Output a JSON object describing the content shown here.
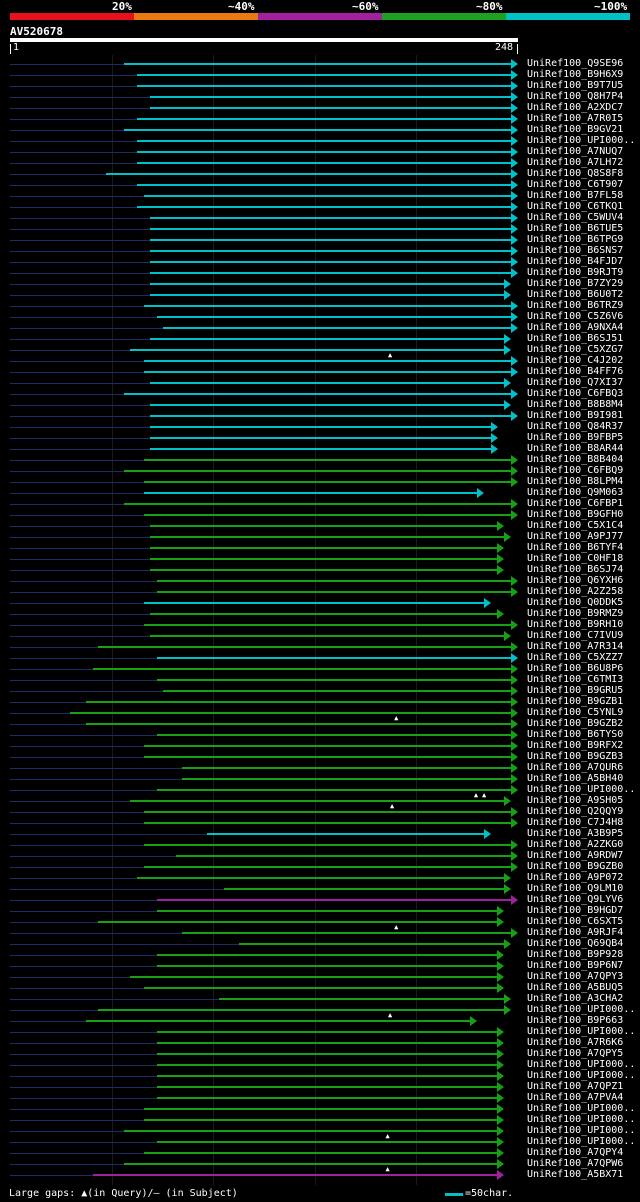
{
  "scale": {
    "labels": [
      "20%",
      "~40%",
      "~60%",
      "~80%",
      "~100%"
    ],
    "colors": [
      "#e8101c",
      "#e87a10",
      "#a020a0",
      "#20a020",
      "#00c0c8"
    ]
  },
  "query": {
    "id": "AV520678",
    "start": "1",
    "end": "248"
  },
  "legend": {
    "gaps_text": "Large gaps: ▲(in Query)/— (in Subject)",
    "scale_text": "=50char."
  },
  "hits": [
    {
      "label": "UniRef100_Q9SE96",
      "start": 0.224,
      "end": 1.0,
      "color": "cyan",
      "gaps": []
    },
    {
      "label": "UniRef100_B9H6X9",
      "start": 0.25,
      "end": 1.0,
      "color": "cyan",
      "gaps": []
    },
    {
      "label": "UniRef100_B9T7U5",
      "start": 0.25,
      "end": 1.0,
      "color": "cyan",
      "gaps": []
    },
    {
      "label": "UniRef100_Q8H7P4",
      "start": 0.276,
      "end": 1.0,
      "color": "cyan",
      "gaps": []
    },
    {
      "label": "UniRef100_A2XDC7",
      "start": 0.276,
      "end": 1.0,
      "color": "cyan",
      "gaps": []
    },
    {
      "label": "UniRef100_A7R0I5",
      "start": 0.25,
      "end": 1.0,
      "color": "cyan",
      "gaps": []
    },
    {
      "label": "UniRef100_B9GV21",
      "start": 0.224,
      "end": 1.0,
      "color": "cyan",
      "gaps": []
    },
    {
      "label": "UniRef100_UPI000..",
      "start": 0.25,
      "end": 1.0,
      "color": "cyan",
      "gaps": []
    },
    {
      "label": "UniRef100_A7NUQ7",
      "start": 0.25,
      "end": 1.0,
      "color": "cyan",
      "gaps": []
    },
    {
      "label": "UniRef100_A7LH72",
      "start": 0.25,
      "end": 1.0,
      "color": "cyan",
      "gaps": []
    },
    {
      "label": "UniRef100_Q8S8F8",
      "start": 0.189,
      "end": 1.0,
      "color": "cyan",
      "gaps": []
    },
    {
      "label": "UniRef100_C6T907",
      "start": 0.25,
      "end": 1.0,
      "color": "cyan",
      "gaps": []
    },
    {
      "label": "UniRef100_B7FL58",
      "start": 0.264,
      "end": 1.0,
      "color": "cyan",
      "gaps": []
    },
    {
      "label": "UniRef100_C6TKQ1",
      "start": 0.25,
      "end": 1.0,
      "color": "cyan",
      "gaps": []
    },
    {
      "label": "UniRef100_C5WUV4",
      "start": 0.276,
      "end": 1.0,
      "color": "cyan",
      "gaps": []
    },
    {
      "label": "UniRef100_B6TUE5",
      "start": 0.276,
      "end": 1.0,
      "color": "cyan",
      "gaps": []
    },
    {
      "label": "UniRef100_B6TPG9",
      "start": 0.276,
      "end": 1.0,
      "color": "cyan",
      "gaps": []
    },
    {
      "label": "UniRef100_B6SNS7",
      "start": 0.276,
      "end": 1.0,
      "color": "cyan",
      "gaps": []
    },
    {
      "label": "UniRef100_B4FJD7",
      "start": 0.276,
      "end": 1.0,
      "color": "cyan",
      "gaps": []
    },
    {
      "label": "UniRef100_B9RJT9",
      "start": 0.276,
      "end": 1.0,
      "color": "cyan",
      "gaps": []
    },
    {
      "label": "UniRef100_B7ZY29",
      "start": 0.276,
      "end": 0.986,
      "color": "cyan",
      "gaps": []
    },
    {
      "label": "UniRef100_B6U0T2",
      "start": 0.276,
      "end": 0.986,
      "color": "cyan",
      "gaps": []
    },
    {
      "label": "UniRef100_B6TRZ9",
      "start": 0.264,
      "end": 1.0,
      "color": "cyan",
      "gaps": []
    },
    {
      "label": "UniRef100_C5Z6V6",
      "start": 0.289,
      "end": 1.0,
      "color": "cyan",
      "gaps": []
    },
    {
      "label": "UniRef100_A9NXA4",
      "start": 0.301,
      "end": 1.0,
      "color": "cyan",
      "gaps": []
    },
    {
      "label": "UniRef100_B6SJ51",
      "start": 0.276,
      "end": 0.986,
      "color": "cyan",
      "gaps": []
    },
    {
      "label": "UniRef100_C5XZG7",
      "start": 0.236,
      "end": 0.986,
      "color": "cyan",
      "gaps": [
        0.748
      ]
    },
    {
      "label": "UniRef100_C4J202",
      "start": 0.264,
      "end": 1.0,
      "color": "cyan",
      "gaps": []
    },
    {
      "label": "UniRef100_B4FF76",
      "start": 0.264,
      "end": 1.0,
      "color": "cyan",
      "gaps": []
    },
    {
      "label": "UniRef100_Q7XI37",
      "start": 0.276,
      "end": 0.986,
      "color": "cyan",
      "gaps": []
    },
    {
      "label": "UniRef100_C6FBQ3",
      "start": 0.224,
      "end": 1.0,
      "color": "cyan",
      "gaps": []
    },
    {
      "label": "UniRef100_B8B8M4",
      "start": 0.276,
      "end": 0.986,
      "color": "cyan",
      "gaps": []
    },
    {
      "label": "UniRef100_B9I981",
      "start": 0.276,
      "end": 1.0,
      "color": "cyan",
      "gaps": []
    },
    {
      "label": "UniRef100_Q84R37",
      "start": 0.276,
      "end": 0.96,
      "color": "cyan",
      "gaps": []
    },
    {
      "label": "UniRef100_B9FBP5",
      "start": 0.276,
      "end": 0.96,
      "color": "cyan",
      "gaps": []
    },
    {
      "label": "UniRef100_B8AR44",
      "start": 0.276,
      "end": 0.96,
      "color": "cyan",
      "gaps": []
    },
    {
      "label": "UniRef100_B8B404",
      "start": 0.264,
      "end": 1.0,
      "color": "green",
      "gaps": []
    },
    {
      "label": "UniRef100_C6FBQ9",
      "start": 0.224,
      "end": 1.0,
      "color": "green",
      "gaps": []
    },
    {
      "label": "UniRef100_B8LPM4",
      "start": 0.264,
      "end": 1.0,
      "color": "green",
      "gaps": []
    },
    {
      "label": "UniRef100_Q9M063",
      "start": 0.264,
      "end": 0.934,
      "color": "cyan",
      "gaps": []
    },
    {
      "label": "UniRef100_C6FBP1",
      "start": 0.224,
      "end": 1.0,
      "color": "green",
      "gaps": []
    },
    {
      "label": "UniRef100_B9GFH0",
      "start": 0.264,
      "end": 1.0,
      "color": "green",
      "gaps": []
    },
    {
      "label": "UniRef100_C5X1C4",
      "start": 0.276,
      "end": 0.973,
      "color": "green",
      "gaps": []
    },
    {
      "label": "UniRef100_A9PJ77",
      "start": 0.276,
      "end": 0.986,
      "color": "green",
      "gaps": []
    },
    {
      "label": "UniRef100_B6TYF4",
      "start": 0.276,
      "end": 0.973,
      "color": "green",
      "gaps": []
    },
    {
      "label": "UniRef100_C0HF18",
      "start": 0.276,
      "end": 0.973,
      "color": "green",
      "gaps": []
    },
    {
      "label": "UniRef100_B6SJ74",
      "start": 0.276,
      "end": 0.973,
      "color": "green",
      "gaps": []
    },
    {
      "label": "UniRef100_Q6YXH6",
      "start": 0.289,
      "end": 1.0,
      "color": "green",
      "gaps": []
    },
    {
      "label": "UniRef100_A2Z258",
      "start": 0.289,
      "end": 1.0,
      "color": "green",
      "gaps": []
    },
    {
      "label": "UniRef100_Q0DDK5",
      "start": 0.264,
      "end": 0.947,
      "color": "cyan",
      "gaps": []
    },
    {
      "label": "UniRef100_B9RMZ9",
      "start": 0.276,
      "end": 0.973,
      "color": "green",
      "gaps": []
    },
    {
      "label": "UniRef100_B9RH10",
      "start": 0.264,
      "end": 1.0,
      "color": "green",
      "gaps": []
    },
    {
      "label": "UniRef100_C7IVU9",
      "start": 0.276,
      "end": 0.986,
      "color": "green",
      "gaps": []
    },
    {
      "label": "UniRef100_A7R314",
      "start": 0.174,
      "end": 1.0,
      "color": "green",
      "gaps": []
    },
    {
      "label": "UniRef100_C5XZZ7",
      "start": 0.289,
      "end": 1.0,
      "color": "cyan",
      "gaps": []
    },
    {
      "label": "UniRef100_B6U8P6",
      "start": 0.163,
      "end": 1.0,
      "color": "green",
      "gaps": []
    },
    {
      "label": "UniRef100_C6TMI3",
      "start": 0.289,
      "end": 1.0,
      "color": "green",
      "gaps": []
    },
    {
      "label": "UniRef100_B9GRU5",
      "start": 0.301,
      "end": 1.0,
      "color": "green",
      "gaps": []
    },
    {
      "label": "UniRef100_B9GZB1",
      "start": 0.15,
      "end": 1.0,
      "color": "green",
      "gaps": []
    },
    {
      "label": "UniRef100_C5YNL9",
      "start": 0.118,
      "end": 1.0,
      "color": "green",
      "gaps": [
        0.76
      ]
    },
    {
      "label": "UniRef100_B9GZB2",
      "start": 0.15,
      "end": 1.0,
      "color": "green",
      "gaps": []
    },
    {
      "label": "UniRef100_B6TYS0",
      "start": 0.289,
      "end": 1.0,
      "color": "green",
      "gaps": []
    },
    {
      "label": "UniRef100_B9RFX2",
      "start": 0.264,
      "end": 1.0,
      "color": "green",
      "gaps": []
    },
    {
      "label": "UniRef100_B9GZB3",
      "start": 0.264,
      "end": 1.0,
      "color": "green",
      "gaps": []
    },
    {
      "label": "UniRef100_A7QUR6",
      "start": 0.338,
      "end": 1.0,
      "color": "green",
      "gaps": []
    },
    {
      "label": "UniRef100_A5BH40",
      "start": 0.338,
      "end": 1.0,
      "color": "green",
      "gaps": []
    },
    {
      "label": "UniRef100_UPI000..",
      "start": 0.289,
      "end": 1.0,
      "color": "green",
      "gaps": [
        0.917,
        0.933
      ]
    },
    {
      "label": "UniRef100_A9SH05",
      "start": 0.236,
      "end": 0.986,
      "color": "green",
      "gaps": [
        0.752
      ]
    },
    {
      "label": "UniRef100_Q2QQY9",
      "start": 0.264,
      "end": 1.0,
      "color": "green",
      "gaps": []
    },
    {
      "label": "UniRef100_C7J4H8",
      "start": 0.264,
      "end": 1.0,
      "color": "green",
      "gaps": []
    },
    {
      "label": "UniRef100_A3B9P5",
      "start": 0.387,
      "end": 0.947,
      "color": "cyan",
      "gaps": []
    },
    {
      "label": "UniRef100_A2ZKG0",
      "start": 0.264,
      "end": 1.0,
      "color": "green",
      "gaps": []
    },
    {
      "label": "UniRef100_A9RDW7",
      "start": 0.326,
      "end": 1.0,
      "color": "green",
      "gaps": []
    },
    {
      "label": "UniRef100_B9GZB0",
      "start": 0.264,
      "end": 1.0,
      "color": "green",
      "gaps": []
    },
    {
      "label": "UniRef100_A9P072",
      "start": 0.25,
      "end": 0.986,
      "color": "green",
      "gaps": []
    },
    {
      "label": "UniRef100_Q9LM10",
      "start": 0.422,
      "end": 0.986,
      "color": "green",
      "gaps": []
    },
    {
      "label": "UniRef100_Q9LYV6",
      "start": 0.289,
      "end": 1.0,
      "color": "magenta",
      "gaps": []
    },
    {
      "label": "UniRef100_B9HGD7",
      "start": 0.289,
      "end": 0.973,
      "color": "green",
      "gaps": []
    },
    {
      "label": "UniRef100_C6SXT5",
      "start": 0.174,
      "end": 0.973,
      "color": "green",
      "gaps": [
        0.76
      ]
    },
    {
      "label": "UniRef100_A9RJF4",
      "start": 0.338,
      "end": 1.0,
      "color": "green",
      "gaps": []
    },
    {
      "label": "UniRef100_Q69QB4",
      "start": 0.45,
      "end": 0.986,
      "color": "green",
      "gaps": []
    },
    {
      "label": "UniRef100_B9P928",
      "start": 0.289,
      "end": 0.973,
      "color": "green",
      "gaps": []
    },
    {
      "label": "UniRef100_B9P6N7",
      "start": 0.289,
      "end": 0.973,
      "color": "green",
      "gaps": []
    },
    {
      "label": "UniRef100_A7QPY3",
      "start": 0.236,
      "end": 0.973,
      "color": "green",
      "gaps": []
    },
    {
      "label": "UniRef100_A5BUQ5",
      "start": 0.264,
      "end": 0.973,
      "color": "green",
      "gaps": []
    },
    {
      "label": "UniRef100_A3CHA2",
      "start": 0.412,
      "end": 0.986,
      "color": "green",
      "gaps": []
    },
    {
      "label": "UniRef100_UPI000..",
      "start": 0.174,
      "end": 0.986,
      "color": "green",
      "gaps": [
        0.748
      ]
    },
    {
      "label": "UniRef100_B9P663",
      "start": 0.15,
      "end": 0.92,
      "color": "green",
      "gaps": []
    },
    {
      "label": "UniRef100_UPI000..",
      "start": 0.289,
      "end": 0.973,
      "color": "green",
      "gaps": []
    },
    {
      "label": "UniRef100_A7R6K6",
      "start": 0.289,
      "end": 0.973,
      "color": "green",
      "gaps": []
    },
    {
      "label": "UniRef100_A7QPY5",
      "start": 0.289,
      "end": 0.973,
      "color": "green",
      "gaps": []
    },
    {
      "label": "UniRef100_UPI000..",
      "start": 0.289,
      "end": 0.973,
      "color": "green",
      "gaps": []
    },
    {
      "label": "UniRef100_UPI000..",
      "start": 0.289,
      "end": 0.973,
      "color": "green",
      "gaps": []
    },
    {
      "label": "UniRef100_A7QPZ1",
      "start": 0.289,
      "end": 0.973,
      "color": "green",
      "gaps": []
    },
    {
      "label": "UniRef100_A7PVA4",
      "start": 0.289,
      "end": 0.973,
      "color": "green",
      "gaps": []
    },
    {
      "label": "UniRef100_UPI000..",
      "start": 0.264,
      "end": 0.973,
      "color": "green",
      "gaps": []
    },
    {
      "label": "UniRef100_UPI000..",
      "start": 0.264,
      "end": 0.973,
      "color": "green",
      "gaps": []
    },
    {
      "label": "UniRef100_UPI000..",
      "start": 0.224,
      "end": 0.973,
      "color": "green",
      "gaps": [
        0.743
      ]
    },
    {
      "label": "UniRef100_UPI000..",
      "start": 0.289,
      "end": 0.973,
      "color": "green",
      "gaps": []
    },
    {
      "label": "UniRef100_A7QPY4",
      "start": 0.264,
      "end": 0.973,
      "color": "green",
      "gaps": []
    },
    {
      "label": "UniRef100_A7QPW6",
      "start": 0.224,
      "end": 0.973,
      "color": "green",
      "gaps": [
        0.743
      ]
    },
    {
      "label": "UniRef100_A5BX71",
      "start": 0.163,
      "end": 0.973,
      "color": "magenta",
      "gaps": []
    }
  ]
}
